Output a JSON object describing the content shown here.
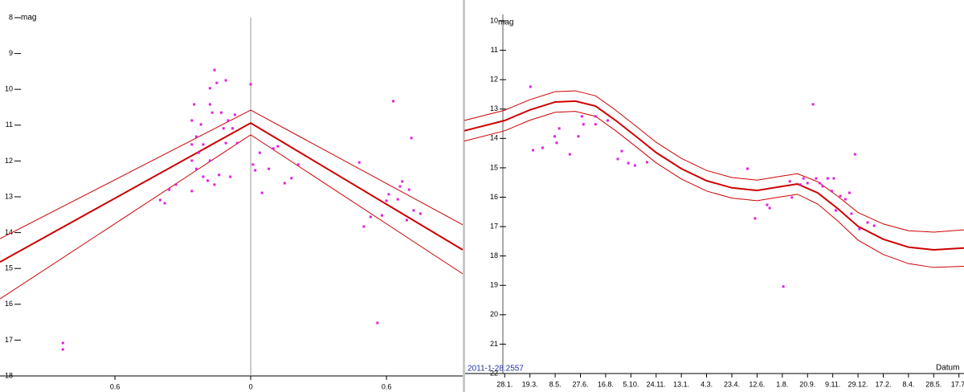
{
  "chart_data": [
    {
      "type": "scatter",
      "y_label": "mag",
      "y_inverted": true,
      "reference_line": 0,
      "xlim": [
        -1.108,
        0.937
      ],
      "ylim": [
        8,
        18
      ],
      "xticks": [
        {
          "value": -0.6,
          "label": "0.6"
        },
        0,
        0.6
      ],
      "yticks": [
        8,
        9,
        10,
        11,
        12,
        13,
        14,
        15,
        16,
        17,
        18
      ],
      "points": {
        "color": "#e020e0",
        "x": [
          -0.83,
          -0.83,
          -0.4,
          -0.38,
          -0.36,
          -0.33,
          -0.26,
          -0.26,
          -0.26,
          -0.26,
          -0.25,
          -0.24,
          -0.24,
          -0.23,
          -0.22,
          -0.21,
          -0.21,
          -0.19,
          -0.18,
          -0.18,
          -0.18,
          -0.17,
          -0.16,
          -0.16,
          -0.15,
          -0.14,
          -0.13,
          -0.12,
          -0.11,
          -0.11,
          -0.1,
          -0.09,
          -0.08,
          -0.07,
          -0.06,
          0.0,
          0.01,
          0.02,
          0.04,
          0.05,
          0.08,
          0.1,
          0.12,
          0.15,
          0.18,
          0.21,
          0.48,
          0.5,
          0.53,
          0.56,
          0.58,
          0.6,
          0.61,
          0.63,
          0.65,
          0.66,
          0.67,
          0.69,
          0.7,
          0.71,
          0.72,
          0.75
        ],
        "values": [
          17.08,
          17.26,
          13.09,
          13.18,
          12.8,
          12.66,
          12.84,
          11.99,
          11.54,
          10.87,
          10.42,
          12.22,
          11.32,
          11.77,
          10.98,
          12.44,
          11.54,
          12.55,
          10.42,
          11.99,
          9.97,
          10.65,
          12.66,
          9.46,
          9.82,
          12.39,
          10.65,
          11.09,
          9.75,
          11.5,
          10.87,
          12.44,
          11.09,
          10.71,
          11.5,
          9.86,
          12.1,
          12.26,
          11.77,
          12.89,
          12.22,
          11.65,
          11.59,
          12.62,
          12.48,
          12.1,
          12.04,
          13.83,
          13.56,
          16.52,
          13.52,
          13.11,
          12.93,
          10.33,
          13.07,
          12.71,
          12.57,
          13.65,
          12.8,
          11.36,
          13.38,
          13.47
        ]
      },
      "curves": [
        {
          "color": "#cc0000",
          "width": 2,
          "x": [
            -1.108,
            0,
            0.937
          ],
          "values": [
            14.82,
            10.94,
            14.48
          ]
        },
        {
          "color": "#cc0000",
          "width": 1,
          "x": [
            -1.108,
            0,
            0.937
          ],
          "values": [
            14.17,
            10.58,
            13.78
          ]
        },
        {
          "color": "#cc0000",
          "width": 1,
          "x": [
            -1.108,
            0,
            0.937
          ],
          "values": [
            15.85,
            11.27,
            15.15
          ]
        }
      ]
    },
    {
      "type": "scatter",
      "y_label": "mag",
      "y_inverted": true,
      "x_label": "Datum",
      "annotation": "2011-1-28.2557",
      "xlim": [
        -80,
        910
      ],
      "ylim": [
        10,
        22
      ],
      "xticks": [
        {
          "value": 0,
          "label": "28.1."
        },
        {
          "value": 50,
          "label": "19.3."
        },
        {
          "value": 100,
          "label": "8.5."
        },
        {
          "value": 150,
          "label": "27.6."
        },
        {
          "value": 200,
          "label": "16.8."
        },
        {
          "value": 250,
          "label": "5.10."
        },
        {
          "value": 300,
          "label": "24.11."
        },
        {
          "value": 350,
          "label": "13.1."
        },
        {
          "value": 400,
          "label": "4.3."
        },
        {
          "value": 450,
          "label": "23.4."
        },
        {
          "value": 500,
          "label": "12.6."
        },
        {
          "value": 550,
          "label": "1.8."
        },
        {
          "value": 600,
          "label": "20.9."
        },
        {
          "value": 650,
          "label": "9.11."
        },
        {
          "value": 700,
          "label": "29.12."
        },
        {
          "value": 750,
          "label": "17.2."
        },
        {
          "value": 800,
          "label": "8.4."
        },
        {
          "value": 850,
          "label": "28.5."
        },
        {
          "value": 900,
          "label": "17.7."
        }
      ],
      "yticks": [
        10,
        11,
        12,
        13,
        14,
        15,
        16,
        17,
        18,
        19,
        20,
        21,
        22
      ],
      "points": {
        "color": "#e020e0",
        "x": [
          51,
          56,
          75,
          99,
          103,
          108,
          129,
          146,
          153,
          156,
          180,
          180,
          204,
          224,
          232,
          245,
          258,
          282,
          481,
          496,
          520,
          525,
          552,
          565,
          569,
          586,
          592,
          600,
          611,
          617,
          624,
          630,
          640,
          648,
          652,
          656,
          665,
          675,
          683,
          687,
          694,
          703,
          719,
          732
        ],
        "values": [
          12.24,
          14.4,
          14.32,
          13.93,
          14.15,
          13.66,
          14.54,
          13.93,
          13.25,
          13.52,
          13.52,
          13.25,
          13.39,
          14.7,
          14.43,
          14.84,
          14.92,
          14.81,
          15.03,
          16.72,
          16.26,
          16.37,
          19.04,
          15.46,
          16.01,
          15.57,
          15.36,
          15.52,
          12.84,
          15.36,
          15.52,
          15.63,
          15.36,
          15.79,
          15.36,
          16.45,
          15.96,
          16.07,
          15.85,
          16.56,
          14.54,
          17.08,
          16.86,
          16.97
        ]
      },
      "curves": [
        {
          "color": "#cc0000",
          "width": 2,
          "x": [
            -80,
            0,
            50,
            100,
            140,
            180,
            220,
            260,
            300,
            350,
            400,
            450,
            500,
            550,
            580,
            620,
            660,
            700,
            750,
            800,
            850,
            910
          ],
          "values": [
            13.74,
            13.39,
            13.03,
            12.76,
            12.73,
            12.9,
            13.39,
            13.93,
            14.48,
            15.03,
            15.44,
            15.68,
            15.77,
            15.63,
            15.55,
            15.85,
            16.39,
            16.99,
            17.43,
            17.7,
            17.79,
            17.73
          ]
        },
        {
          "color": "#cc0000",
          "width": 1,
          "x": [
            -80,
            0,
            50,
            100,
            140,
            180,
            220,
            260,
            300,
            350,
            400,
            450,
            500,
            550,
            580,
            620,
            660,
            700,
            750,
            800,
            850,
            910
          ],
          "values": [
            13.39,
            13.04,
            12.68,
            12.41,
            12.38,
            12.55,
            13.04,
            13.58,
            14.13,
            14.68,
            15.09,
            15.33,
            15.42,
            15.28,
            15.2,
            15.47,
            15.97,
            16.52,
            16.91,
            17.14,
            17.19,
            17.11
          ]
        },
        {
          "color": "#cc0000",
          "width": 1,
          "x": [
            -80,
            0,
            50,
            100,
            140,
            180,
            220,
            260,
            300,
            350,
            400,
            450,
            500,
            550,
            580,
            620,
            660,
            700,
            750,
            800,
            850,
            910
          ],
          "values": [
            14.09,
            13.74,
            13.38,
            13.11,
            13.08,
            13.25,
            13.74,
            14.28,
            14.83,
            15.38,
            15.79,
            16.03,
            16.12,
            15.98,
            15.9,
            16.23,
            16.81,
            17.46,
            17.95,
            18.26,
            18.39,
            18.35
          ]
        }
      ]
    }
  ]
}
